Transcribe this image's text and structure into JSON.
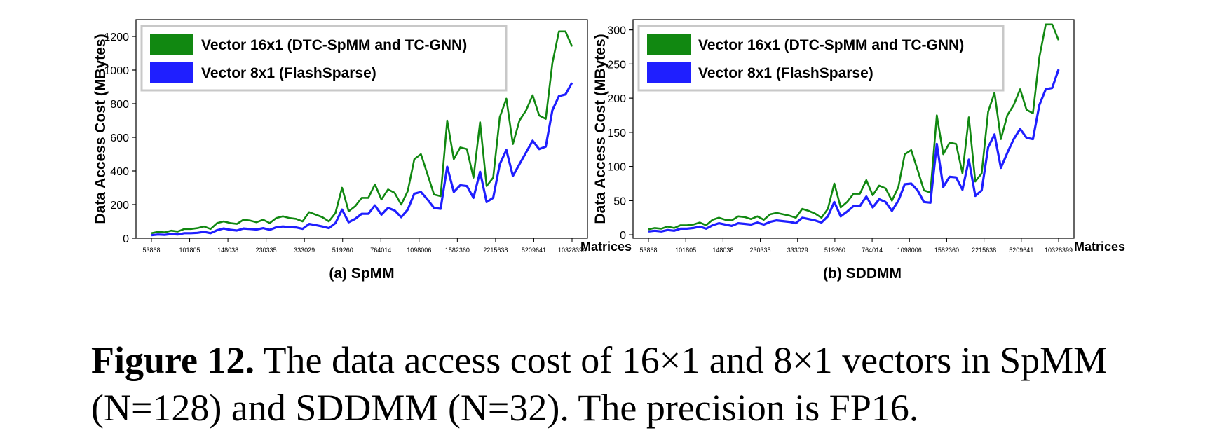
{
  "caption": {
    "label": "Figure 12.",
    "text": "The data access cost of 16×1 and 8×1 vectors in SpMM (N=128) and SDDMM (N=32). The precision is FP16."
  },
  "chart_data": [
    {
      "type": "line",
      "title": "(a) SpMM",
      "xlabel": "Matrices",
      "ylabel": "Data Access Cost (MBytes)",
      "ylim": [
        0,
        1300
      ],
      "yticks": [
        0,
        200,
        400,
        600,
        800,
        1000,
        1200
      ],
      "xtick_labels": [
        "53868",
        "101805",
        "148038",
        "230335",
        "333029",
        "519260",
        "764014",
        "1098006",
        "1582360",
        "2215638",
        "5209641",
        "10328399"
      ],
      "legend": "top-left",
      "series": [
        {
          "name": "Vector 16x1 (DTC-SpMM and TC-GNN)",
          "color": "#118811",
          "values": [
            30,
            38,
            35,
            45,
            40,
            55,
            55,
            60,
            70,
            55,
            90,
            100,
            90,
            85,
            110,
            105,
            95,
            110,
            90,
            120,
            130,
            120,
            115,
            100,
            155,
            140,
            125,
            100,
            150,
            300,
            160,
            190,
            240,
            240,
            320,
            230,
            290,
            270,
            200,
            280,
            470,
            500,
            380,
            260,
            250,
            700,
            470,
            540,
            530,
            360,
            690,
            310,
            360,
            720,
            830,
            560,
            700,
            760,
            850,
            730,
            710,
            1040,
            1230,
            1230,
            1140
          ]
        },
        {
          "name": "Vector 8x1 (FlashSparse)",
          "color": "#1f1fff",
          "values": [
            18,
            22,
            20,
            25,
            22,
            30,
            30,
            32,
            38,
            30,
            48,
            58,
            50,
            46,
            58,
            55,
            52,
            60,
            50,
            65,
            70,
            66,
            64,
            56,
            85,
            78,
            70,
            60,
            90,
            170,
            95,
            115,
            145,
            145,
            195,
            140,
            180,
            165,
            125,
            170,
            265,
            275,
            230,
            180,
            175,
            425,
            275,
            315,
            310,
            240,
            395,
            215,
            240,
            440,
            525,
            370,
            440,
            510,
            580,
            530,
            545,
            760,
            845,
            855,
            925
          ]
        }
      ]
    },
    {
      "type": "line",
      "title": "(b) SDDMM",
      "xlabel": "Matrices",
      "ylabel": "Data Access Cost (MBytes)",
      "ylim": [
        -5,
        315
      ],
      "yticks": [
        0,
        50,
        100,
        150,
        200,
        250,
        300
      ],
      "xtick_labels": [
        "53868",
        "101805",
        "148038",
        "230335",
        "333029",
        "519260",
        "764014",
        "1098006",
        "1582360",
        "2215638",
        "5209641",
        "10328399"
      ],
      "legend": "top-left",
      "series": [
        {
          "name": "Vector 16x1 (DTC-SpMM and TC-GNN)",
          "color": "#118811",
          "values": [
            8,
            10,
            9,
            12,
            10,
            14,
            14,
            15,
            18,
            14,
            22,
            25,
            22,
            21,
            27,
            26,
            23,
            27,
            22,
            30,
            32,
            30,
            28,
            25,
            38,
            35,
            31,
            25,
            38,
            75,
            40,
            48,
            60,
            60,
            80,
            58,
            72,
            68,
            50,
            70,
            118,
            124,
            95,
            65,
            62,
            175,
            118,
            135,
            133,
            90,
            172,
            78,
            90,
            180,
            208,
            140,
            175,
            190,
            213,
            183,
            178,
            260,
            308,
            308,
            285
          ]
        },
        {
          "name": "Vector 8x1 (FlashSparse)",
          "color": "#1f1fff",
          "values": [
            5,
            6,
            5,
            7,
            6,
            9,
            9,
            10,
            12,
            9,
            14,
            17,
            15,
            13,
            17,
            16,
            15,
            18,
            15,
            19,
            21,
            20,
            19,
            17,
            25,
            23,
            21,
            18,
            27,
            48,
            27,
            34,
            42,
            42,
            56,
            40,
            52,
            48,
            35,
            50,
            74,
            75,
            65,
            48,
            47,
            133,
            70,
            85,
            84,
            66,
            110,
            57,
            65,
            128,
            147,
            98,
            120,
            140,
            155,
            142,
            140,
            190,
            213,
            215,
            242
          ]
        }
      ]
    }
  ]
}
